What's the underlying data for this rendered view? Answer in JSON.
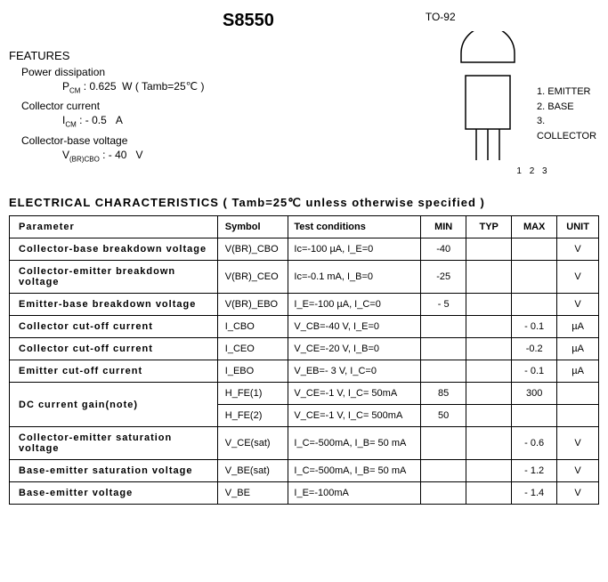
{
  "header": {
    "part_number": "S8550",
    "package": "TO-92"
  },
  "features": {
    "heading": "FEATURES",
    "items": [
      {
        "label": "Power dissipation",
        "sub": "P_CM : 0.625 W ( Tamb=25℃ )"
      },
      {
        "label": "Collector current",
        "sub": "I_CM : - 0.5 A"
      },
      {
        "label": "Collector-base voltage",
        "sub": "V_(BR)CBO : - 40 V"
      }
    ]
  },
  "pins": {
    "labels": [
      "1. EMITTER",
      "2. BASE",
      "3. COLLECTOR"
    ],
    "numbers": "1 2 3"
  },
  "electrical": {
    "heading": "ELECTRICAL CHARACTERISTICS ( Tamb=25℃ unless otherwise specified )",
    "columns": [
      "Parameter",
      "Symbol",
      "Test conditions",
      "MIN",
      "TYP",
      "MAX",
      "UNIT"
    ],
    "rows": [
      {
        "param": "Collector-base breakdown voltage",
        "symbol": "V(BR)_CBO",
        "cond": "Ic=-100 µA, I_E=0",
        "min": "-40",
        "typ": "",
        "max": "",
        "unit": "V"
      },
      {
        "param": "Collector-emitter breakdown voltage",
        "symbol": "V(BR)_CEO",
        "cond": "Ic=-0.1 mA, I_B=0",
        "min": "-25",
        "typ": "",
        "max": "",
        "unit": "V"
      },
      {
        "param": "Emitter-base breakdown voltage",
        "symbol": "V(BR)_EBO",
        "cond": "I_E=-100 µA, I_C=0",
        "min": "- 5",
        "typ": "",
        "max": "",
        "unit": "V"
      },
      {
        "param": "Collector cut-off current",
        "symbol": "I_CBO",
        "cond": "V_CB=-40 V, I_E=0",
        "min": "",
        "typ": "",
        "max": "- 0.1",
        "unit": "µA"
      },
      {
        "param": "Collector cut-off current",
        "symbol": "I_CEO",
        "cond": "V_CE=-20 V, I_B=0",
        "min": "",
        "typ": "",
        "max": "-0.2",
        "unit": "µA"
      },
      {
        "param": "Emitter cut-off current",
        "symbol": "I_EBO",
        "cond": "V_EB=- 3 V, I_C=0",
        "min": "",
        "typ": "",
        "max": "- 0.1",
        "unit": "µA"
      },
      {
        "param": "DC current gain(note)",
        "rowspan": 2,
        "symbol": "H_FE(1)",
        "cond": "V_CE=-1 V, I_C= 50mA",
        "min": "85",
        "typ": "",
        "max": "300",
        "unit": ""
      },
      {
        "param": "",
        "symbol": "H_FE(2)",
        "cond": "V_CE=-1 V, I_C= 500mA",
        "min": "50",
        "typ": "",
        "max": "",
        "unit": ""
      },
      {
        "param": "Collector-emitter saturation voltage",
        "symbol": "V_CE(sat)",
        "cond": "I_C=-500mA, I_B= 50 mA",
        "min": "",
        "typ": "",
        "max": "- 0.6",
        "unit": "V"
      },
      {
        "param": "Base-emitter saturation voltage",
        "symbol": "V_BE(sat)",
        "cond": "I_C=-500mA, I_B= 50 mA",
        "min": "",
        "typ": "",
        "max": "- 1.2",
        "unit": "V"
      },
      {
        "param": "Base-emitter voltage",
        "symbol": "V_BE",
        "cond": "I_E=-100mA",
        "min": "",
        "typ": "",
        "max": "- 1.4",
        "unit": "V"
      }
    ]
  },
  "style": {
    "border_color": "#000000",
    "background": "#ffffff",
    "font_family": "Arial",
    "heading_fontsize": 13,
    "cell_fontsize": 11
  }
}
